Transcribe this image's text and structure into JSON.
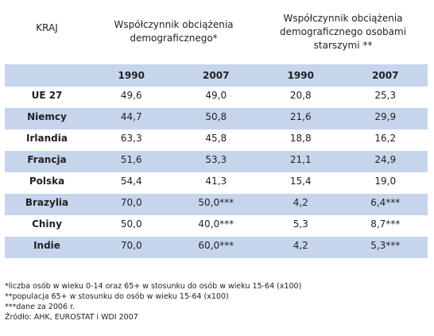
{
  "table": {
    "headers": {
      "country": "KRAJ",
      "group1": "Współczynnik obciążenia demograficznego*",
      "group2": "Współczynnik obciążenia demograficznego osobami starszymi **"
    },
    "years": [
      "1990",
      "2007",
      "1990",
      "2007"
    ],
    "rows": [
      {
        "country": "UE 27",
        "v": [
          "49,6",
          "49,0",
          "20,8",
          "25,3"
        ]
      },
      {
        "country": "Niemcy",
        "v": [
          "44,7",
          "50,8",
          "21,6",
          "29,9"
        ]
      },
      {
        "country": "Irlandia",
        "v": [
          "63,3",
          "45,8",
          "18,8",
          "16,2"
        ]
      },
      {
        "country": "Francja",
        "v": [
          "51,6",
          "53,3",
          "21,1",
          "24,9"
        ]
      },
      {
        "country": "Polska",
        "v": [
          "54,4",
          "41,3",
          "15,4",
          "19,0"
        ]
      },
      {
        "country": "Brazylia",
        "v": [
          "70,0",
          "50,0***",
          "4,2",
          "6,4***"
        ]
      },
      {
        "country": "Chiny",
        "v": [
          "50,0",
          "40,0***",
          "5,3",
          "8,7***"
        ]
      },
      {
        "country": "Indie",
        "v": [
          "70,0",
          "60,0***",
          "4,2",
          "5,3***"
        ]
      }
    ]
  },
  "notes": [
    "*liczba osób w wieku 0-14 oraz 65+ w stosunku do osób w wieku 15-64 (x100)",
    "**populacja 65+ w stosunku do osób w wieku 15-64 (x100)",
    "***dane za 2006 r.",
    "Źródło: AHK, EUROSTAT  i WDI 2007"
  ],
  "colors": {
    "band": "#c6d5ec",
    "text": "#222222"
  }
}
